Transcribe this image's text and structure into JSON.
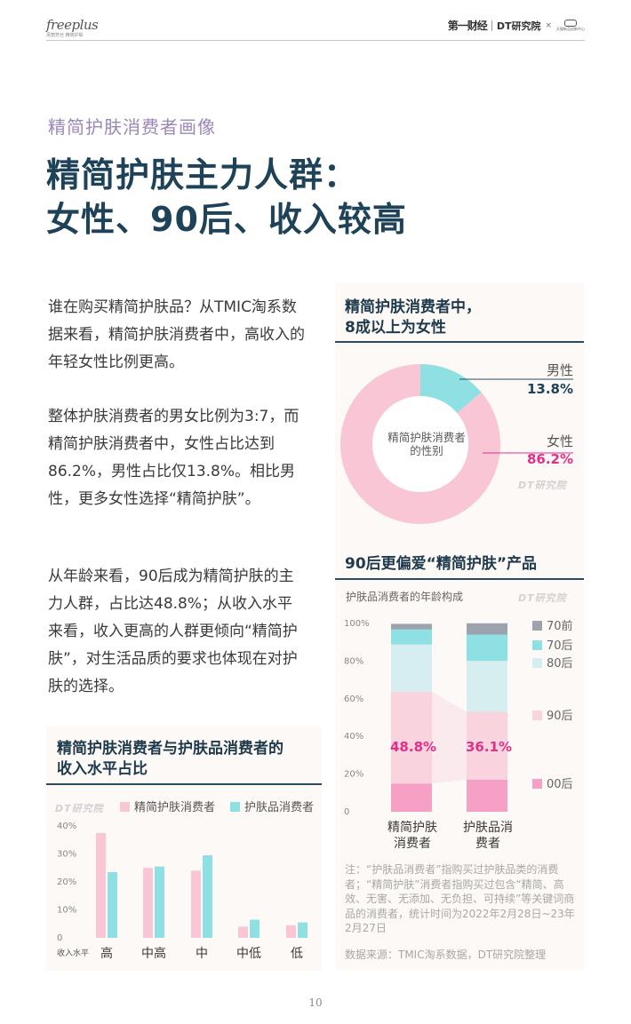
{
  "header": {
    "left_logo": "freeplus",
    "left_logo_sub": "芙丽芳丝 精简护肤",
    "right_logo_cbn": "第一财经",
    "right_logo_dt": "DT研究院",
    "right_logo_x": "×",
    "right_logo_tmic": "天猫新品创新中心"
  },
  "kicker": "精简护肤消费者画像",
  "title_line1": "精简护肤主力人群：",
  "title_line2": "女性、90后、收入较高",
  "paragraphs": {
    "p1": "谁在购买精简护肤品？从TMIC淘系数据来看，精简护肤消费者中，高收入的年轻女性比例更高。",
    "p2": "整体护肤消费者的男女比例为3:7，而精简护肤消费者中，女性占比达到86.2%，男性占比仅13.8%。相比男性，更多女性选择“精简护肤”。",
    "p3": "从年龄来看，90后成为精简护肤的主力人群，占比达48.8%；从收入水平来看，收入更高的人群更倾向“精简护肤”，对生活品质的要求也体现在对护肤的选择。"
  },
  "watermark": "DT研究院",
  "gender_panel": {
    "title_line1": "精简护肤消费者中，",
    "title_line2": "8成以上为女性",
    "center_line1": "精简护肤消费者",
    "center_line2": "的性别",
    "male_label": "男性",
    "male_value": "13.8%",
    "female_label": "女性",
    "female_value": "86.2%"
  },
  "age_panel": {
    "title": "90后更偏爱“精简护肤”产品",
    "subtitle": "护肤品消费者的年龄构成",
    "note": "注：“护肤品消费者”指购买过护肤品类的消费者；“精简护肤”消费者指购买过包含“精简、高效、无害、无添加、无负担、可持续”等关键词商品的消费者，统计时间为2022年2月28日~23年2月27日",
    "source": "数据来源：TMIC淘系数据，DT研究院整理",
    "label_bar1": "48.8%",
    "label_bar2": "36.1%"
  },
  "income_panel": {
    "title_line1": "精简护肤消费者与护肤品消费者的",
    "title_line2": "收入水平占比",
    "axis_title": "收入水平"
  },
  "page_number": "10",
  "colors": {
    "navy": "#1e4258",
    "kicker": "#9b87b8",
    "pink": "#f9c6d6",
    "mint": "#8fe0e2",
    "magenta": "#e0308a",
    "age_70前": "#9aa3ae",
    "age_70后": "#8fe0e2",
    "age_80后": "#d6eef0",
    "age_90后": "#f9d3dd",
    "age_00后": "#f6a0c5"
  },
  "chart_data": [
    {
      "type": "pie",
      "title": "精简护肤消费者的性别",
      "categories": [
        "男性",
        "女性"
      ],
      "values": [
        13.8,
        86.2
      ],
      "colors": [
        "#8fe0e2",
        "#f9c6d6"
      ]
    },
    {
      "type": "bar",
      "stacked": true,
      "title": "护肤品消费者的年龄构成",
      "categories": [
        "精简护肤消费者",
        "护肤品消费者"
      ],
      "yticks": [
        "0",
        "20%",
        "40%",
        "60%",
        "80%",
        "100%"
      ],
      "ylim": [
        0,
        100
      ],
      "series": [
        {
          "name": "00后",
          "values": [
            15,
            17
          ],
          "color": "#f6a0c5"
        },
        {
          "name": "90后",
          "values": [
            48.8,
            36.1
          ],
          "color": "#f9d3dd"
        },
        {
          "name": "80后",
          "values": [
            25,
            27
          ],
          "color": "#d6eef0"
        },
        {
          "name": "70后",
          "values": [
            8,
            14
          ],
          "color": "#8fe0e2"
        },
        {
          "name": "70前",
          "values": [
            3,
            6
          ],
          "color": "#9aa3ae"
        }
      ],
      "legend_position": "right"
    },
    {
      "type": "bar",
      "title": "精简护肤消费者与护肤品消费者的收入水平占比",
      "categories": [
        "高",
        "中高",
        "中",
        "中低",
        "低"
      ],
      "yticks": [
        "0",
        "10%",
        "20%",
        "30%",
        "40%"
      ],
      "ylim": [
        0,
        40
      ],
      "series": [
        {
          "name": "精简护肤消费者",
          "values": [
            37.5,
            25,
            24,
            4,
            4.5
          ],
          "color": "#f9c6d6"
        },
        {
          "name": "护肤品消费者",
          "values": [
            23.5,
            25.5,
            29.5,
            6.5,
            5.5
          ],
          "color": "#8fe0e2"
        }
      ],
      "legend_position": "top"
    }
  ]
}
